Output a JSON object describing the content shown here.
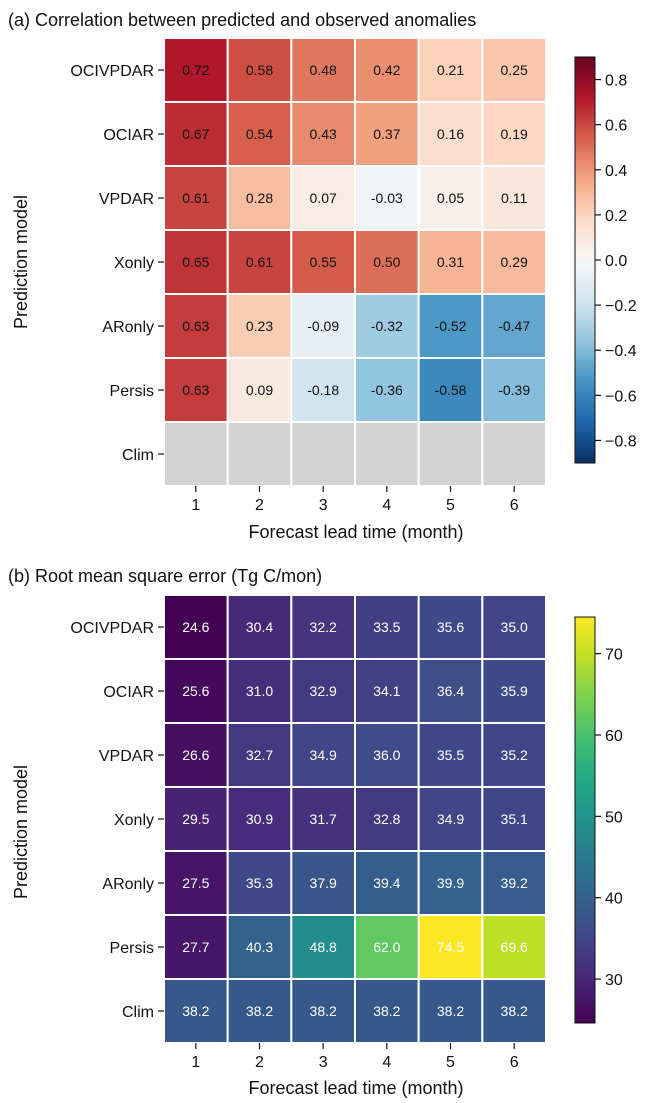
{
  "chart_data": [
    {
      "type": "heatmap",
      "title": "(a) Correlation between predicted and observed anomalies",
      "xlabel": "Forecast lead time (month)",
      "ylabel": "Prediction model",
      "x_categories": [
        "1",
        "2",
        "3",
        "4",
        "5",
        "6"
      ],
      "y_categories": [
        "OCIVPDAR",
        "OCIAR",
        "VPDAR",
        "Xonly",
        "ARonly",
        "Persis",
        "Clim"
      ],
      "values": [
        [
          0.72,
          0.58,
          0.48,
          0.42,
          0.21,
          0.25
        ],
        [
          0.67,
          0.54,
          0.43,
          0.37,
          0.16,
          0.19
        ],
        [
          0.61,
          0.28,
          0.07,
          -0.03,
          0.05,
          0.11
        ],
        [
          0.65,
          0.61,
          0.55,
          0.5,
          0.31,
          0.29
        ],
        [
          0.63,
          0.23,
          -0.09,
          -0.32,
          -0.52,
          -0.47
        ],
        [
          0.63,
          0.09,
          -0.18,
          -0.36,
          -0.58,
          -0.39
        ],
        [
          null,
          null,
          null,
          null,
          null,
          null
        ]
      ],
      "labels": [
        [
          "0.72",
          "0.58",
          "0.48",
          "0.42",
          "0.21",
          "0.25"
        ],
        [
          "0.67",
          "0.54",
          "0.43",
          "0.37",
          "0.16",
          "0.19"
        ],
        [
          "0.61",
          "0.28",
          "0.07",
          "-0.03",
          "0.05",
          "0.11"
        ],
        [
          "0.65",
          "0.61",
          "0.55",
          "0.50",
          "0.31",
          "0.29"
        ],
        [
          "0.63",
          "0.23",
          "-0.09",
          "-0.32",
          "-0.52",
          "-0.47"
        ],
        [
          "0.63",
          "0.09",
          "-0.18",
          "-0.36",
          "-0.58",
          "-0.39"
        ],
        [
          "",
          "",
          "",
          "",
          "",
          ""
        ]
      ],
      "colormap": "RdBu_r",
      "missing_color": "#d3d3d3",
      "vmin": -0.9,
      "vmax": 0.9,
      "colorbar_ticks": [
        0.8,
        0.6,
        0.4,
        0.2,
        0.0,
        -0.2,
        -0.4,
        -0.6,
        -0.8
      ],
      "colorbar_tick_labels": [
        "0.8",
        "0.6",
        "0.4",
        "0.2",
        "0.0",
        "−0.2",
        "−0.4",
        "−0.6",
        "−0.8"
      ],
      "label_text_color": "#111111"
    },
    {
      "type": "heatmap",
      "title": "(b) Root mean square error (Tg C/mon)",
      "xlabel": "Forecast lead time (month)",
      "ylabel": "Prediction model",
      "x_categories": [
        "1",
        "2",
        "3",
        "4",
        "5",
        "6"
      ],
      "y_categories": [
        "OCIVPDAR",
        "OCIAR",
        "VPDAR",
        "Xonly",
        "ARonly",
        "Persis",
        "Clim"
      ],
      "values": [
        [
          24.6,
          30.4,
          32.2,
          33.5,
          35.6,
          35.0
        ],
        [
          25.6,
          31.0,
          32.9,
          34.1,
          36.4,
          35.9
        ],
        [
          26.6,
          32.7,
          34.9,
          36.0,
          35.5,
          35.2
        ],
        [
          29.5,
          30.9,
          31.7,
          32.8,
          34.9,
          35.1
        ],
        [
          27.5,
          35.3,
          37.9,
          39.4,
          39.9,
          39.2
        ],
        [
          27.7,
          40.3,
          48.8,
          62.0,
          74.5,
          69.6
        ],
        [
          38.2,
          38.2,
          38.2,
          38.2,
          38.2,
          38.2
        ]
      ],
      "labels": [
        [
          "24.6",
          "30.4",
          "32.2",
          "33.5",
          "35.6",
          "35.0"
        ],
        [
          "25.6",
          "31.0",
          "32.9",
          "34.1",
          "36.4",
          "35.9"
        ],
        [
          "26.6",
          "32.7",
          "34.9",
          "36.0",
          "35.5",
          "35.2"
        ],
        [
          "29.5",
          "30.9",
          "31.7",
          "32.8",
          "34.9",
          "35.1"
        ],
        [
          "27.5",
          "35.3",
          "37.9",
          "39.4",
          "39.9",
          "39.2"
        ],
        [
          "27.7",
          "40.3",
          "48.8",
          "62.0",
          "74.5",
          "69.6"
        ],
        [
          "38.2",
          "38.2",
          "38.2",
          "38.2",
          "38.2",
          "38.2"
        ]
      ],
      "colormap": "viridis",
      "vmin": 24.6,
      "vmax": 74.5,
      "colorbar_ticks": [
        70,
        60,
        50,
        40,
        30
      ],
      "colorbar_tick_labels": [
        "70",
        "60",
        "50",
        "40",
        "30"
      ],
      "label_text_color": "#ffffff"
    }
  ]
}
